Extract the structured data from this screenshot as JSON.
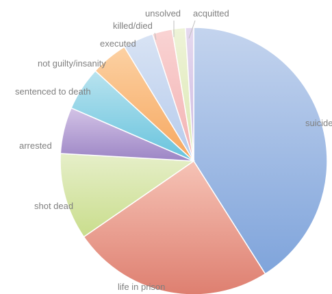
{
  "chart_data": {
    "type": "pie",
    "title": "",
    "slices": [
      {
        "label": "suicide",
        "value": 41.0,
        "color_light": "#c4d4ee",
        "color_dark": "#7fa4db"
      },
      {
        "label": "life in prison",
        "value": 24.4,
        "color_light": "#f6c3b6",
        "color_dark": "#de7f70"
      },
      {
        "label": "shot dead",
        "value": 10.5,
        "color_light": "#e6efc9",
        "color_dark": "#c9dd8c"
      },
      {
        "label": "arrested",
        "value": 5.6,
        "color_light": "#d3c3e6",
        "color_dark": "#9c85c5"
      },
      {
        "label": "sentenced to death",
        "value": 5.3,
        "color_light": "#b9e3ef",
        "color_dark": "#67c3dd"
      },
      {
        "label": "not guilty/insanity",
        "value": 4.5,
        "color_light": "#fcd1a3",
        "color_dark": "#f6a75f"
      },
      {
        "label": "executed",
        "value": 3.7,
        "color_light": "#d8e3f4",
        "color_dark": "#b6cbec"
      },
      {
        "label": "killed/died",
        "value": 2.4,
        "color_light": "#f9d3d3",
        "color_dark": "#f3b2b2"
      },
      {
        "label": "unsolved",
        "value": 1.6,
        "color_light": "#eef3d8",
        "color_dark": "#dce8b2"
      },
      {
        "label": "acquitted",
        "value": 1.0,
        "color_light": "#e5d9ef",
        "color_dark": "#cdb8e0"
      }
    ],
    "start_angle_deg": 0,
    "direction": "clockwise",
    "legend": "none",
    "label_position": "outside-with-leaders"
  }
}
